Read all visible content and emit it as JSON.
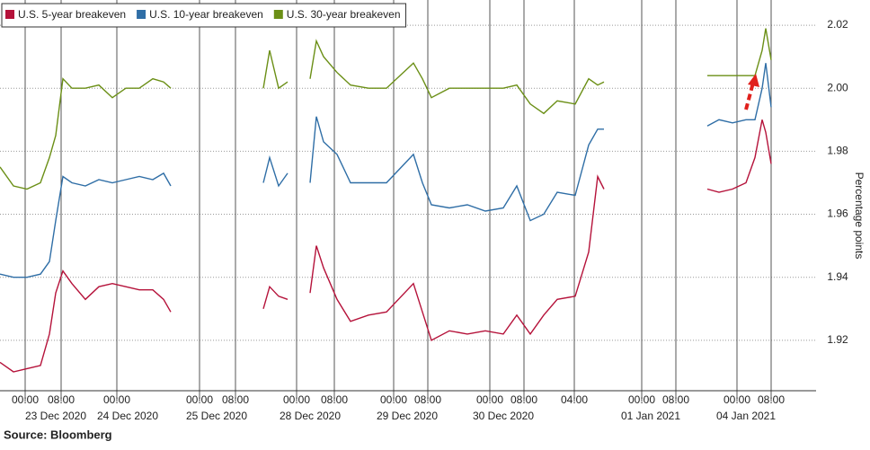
{
  "chart_data": {
    "type": "line",
    "source": "Source: Bloomberg",
    "y_label": "Percentage points",
    "x": [
      0,
      15,
      30,
      45,
      55,
      62,
      70,
      80,
      95,
      110,
      125,
      140,
      155,
      170,
      182,
      190,
      240,
      293,
      300,
      310,
      320,
      332,
      345,
      352,
      360,
      375,
      390,
      410,
      430,
      460,
      470,
      480,
      500,
      520,
      540,
      560,
      575,
      590,
      605,
      620,
      640,
      655,
      665,
      672,
      730,
      787,
      800,
      815,
      830,
      840,
      848,
      852,
      858
    ],
    "xlim": [
      0,
      908
    ],
    "xticks": [
      {
        "value": 28,
        "label": "00:00"
      },
      {
        "value": 68,
        "label": "08:00"
      },
      {
        "value": 130,
        "label": "00:00"
      },
      {
        "value": 222,
        "label": "00:00"
      },
      {
        "value": 262,
        "label": "08:00"
      },
      {
        "value": 330,
        "label": "00:00"
      },
      {
        "value": 372,
        "label": "08:00"
      },
      {
        "value": 438,
        "label": "00:00"
      },
      {
        "value": 476,
        "label": "08:00"
      },
      {
        "value": 545,
        "label": "00:00"
      },
      {
        "value": 583,
        "label": "08:00"
      },
      {
        "value": 639,
        "label": "04:00"
      },
      {
        "value": 714,
        "label": "00:00"
      },
      {
        "value": 752,
        "label": "08:00"
      },
      {
        "value": 820,
        "label": "00:00"
      },
      {
        "value": 858,
        "label": "08:00"
      }
    ],
    "x_day_labels": [
      {
        "value": 62,
        "label": "23 Dec 2020"
      },
      {
        "value": 142,
        "label": "24 Dec 2020"
      },
      {
        "value": 241,
        "label": "25 Dec 2020"
      },
      {
        "value": 345,
        "label": "28 Dec 2020"
      },
      {
        "value": 453,
        "label": "29 Dec 2020"
      },
      {
        "value": 560,
        "label": "30 Dec 2020"
      },
      {
        "value": 724,
        "label": "01 Jan 2021"
      },
      {
        "value": 830,
        "label": "04 Jan 2021"
      }
    ],
    "ylim": [
      1.904,
      2.028
    ],
    "yticks": [
      {
        "value": 1.92,
        "label": "1.92"
      },
      {
        "value": 1.94,
        "label": "1.94"
      },
      {
        "value": 1.96,
        "label": "1.96"
      },
      {
        "value": 1.98,
        "label": "1.98"
      },
      {
        "value": 2.0,
        "label": "2.00"
      },
      {
        "value": 2.02,
        "label": "2.02"
      }
    ],
    "grid": true,
    "legend": "top-left",
    "series": [
      {
        "name": "U.S. 5-year breakeven",
        "color": "#b5123a",
        "values": [
          1.913,
          1.91,
          1.911,
          1.912,
          1.922,
          1.935,
          1.942,
          1.938,
          1.933,
          1.937,
          1.938,
          1.937,
          1.936,
          1.936,
          1.933,
          1.929,
          null,
          1.93,
          1.937,
          1.934,
          1.933,
          null,
          1.935,
          1.95,
          1.943,
          1.933,
          1.926,
          1.928,
          1.929,
          1.938,
          1.929,
          1.92,
          1.923,
          1.922,
          1.923,
          1.922,
          1.928,
          1.922,
          1.928,
          1.933,
          1.934,
          1.948,
          1.972,
          1.968,
          null,
          1.968,
          1.967,
          1.968,
          1.97,
          1.978,
          1.99,
          1.986,
          1.976
        ]
      },
      {
        "name": "U.S. 10-year breakeven",
        "color": "#2f6ea6",
        "values": [
          1.941,
          1.94,
          1.94,
          1.941,
          1.945,
          1.958,
          1.972,
          1.97,
          1.969,
          1.971,
          1.97,
          1.971,
          1.972,
          1.971,
          1.973,
          1.969,
          null,
          1.97,
          1.978,
          1.969,
          1.973,
          null,
          1.97,
          1.991,
          1.983,
          1.979,
          1.97,
          1.97,
          1.97,
          1.979,
          1.97,
          1.963,
          1.962,
          1.963,
          1.961,
          1.962,
          1.969,
          1.958,
          1.96,
          1.967,
          1.966,
          1.982,
          1.987,
          1.987,
          null,
          1.988,
          1.99,
          1.989,
          1.99,
          1.99,
          2.0,
          2.008,
          1.994
        ]
      },
      {
        "name": "U.S. 30-year breakeven",
        "color": "#6b8f16",
        "values": [
          1.975,
          1.969,
          1.968,
          1.97,
          1.978,
          1.985,
          2.003,
          2.0,
          2.0,
          2.001,
          1.997,
          2.0,
          2.0,
          2.003,
          2.002,
          2.0,
          null,
          2.0,
          2.012,
          2.0,
          2.002,
          null,
          2.003,
          2.015,
          2.01,
          2.005,
          2.001,
          2.0,
          2.0,
          2.008,
          2.003,
          1.997,
          2.0,
          2.0,
          2.0,
          2.0,
          2.001,
          1.995,
          1.992,
          1.996,
          1.995,
          2.003,
          2.001,
          2.002,
          null,
          2.004,
          2.004,
          2.004,
          2.004,
          2.004,
          2.012,
          2.019,
          2.009
        ]
      }
    ]
  }
}
